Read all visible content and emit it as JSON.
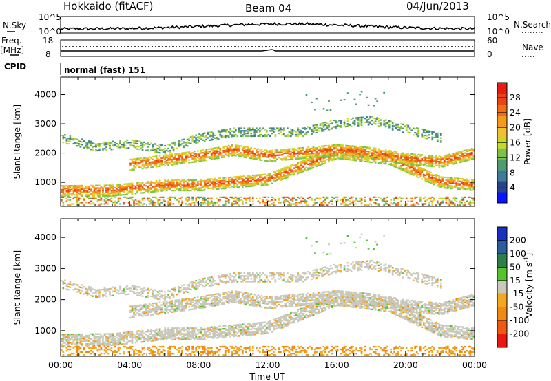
{
  "header": {
    "title": "Hokkaido (fitACF)",
    "beam": "Beam 04",
    "date": "04/Jun/2013"
  },
  "summary_panel": {
    "nsky_label": "N.Sky",
    "nsky_ticks": [
      "10^5",
      "10^0"
    ],
    "nsearch_label": "N.Search",
    "nsearch_ticks": [
      "10^5",
      "10^0"
    ],
    "freq_label": "Freq.",
    "freq_unit": "[MHz]",
    "freq_ticks": [
      "18",
      "8"
    ],
    "nave_label": "Nave",
    "nave_ticks": [
      "60",
      "0"
    ],
    "cpid_label": "CPID",
    "cpid_value": "normal (fast) 151"
  },
  "chart_data": [
    {
      "type": "heatmap",
      "name": "Power",
      "xlabel": "",
      "ylabel": "Slant Range [km]",
      "x_range_hours": [
        0,
        24
      ],
      "ylim": [
        180,
        4600
      ],
      "y_ticks": [
        1000,
        2000,
        3000,
        4000
      ],
      "colorbar": {
        "label": "Power [dB]",
        "range": [
          0,
          32
        ],
        "ticks": [
          4,
          8,
          12,
          16,
          20,
          24,
          28
        ],
        "colors": [
          "#0a14ff",
          "#27448f",
          "#3e7a9a",
          "#4f9a6e",
          "#7cc24a",
          "#c6d82e",
          "#f0c030",
          "#f49b1c",
          "#ef6f16",
          "#e84418",
          "#e61e12"
        ]
      },
      "layers_km_vs_hour": [
        {
          "desc_value": "strong",
          "power_db": 28,
          "center": [
            [
              0,
              700
            ],
            [
              3,
              720
            ],
            [
              6,
              900
            ],
            [
              8,
              900
            ],
            [
              10,
              1000
            ],
            [
              12,
              1100
            ],
            [
              16,
              2000
            ],
            [
              19,
              1800
            ],
            [
              22,
              1000
            ],
            [
              24,
              900
            ]
          ]
        },
        {
          "power_db": 26,
          "center": [
            [
              4,
              1600
            ],
            [
              8,
              1900
            ],
            [
              10,
              2100
            ],
            [
              12,
              1900
            ],
            [
              14,
              2000
            ],
            [
              16,
              2100
            ],
            [
              18,
              2000
            ],
            [
              20,
              1800
            ],
            [
              22,
              1700
            ],
            [
              24,
              2000
            ]
          ]
        },
        {
          "power_db": 14,
          "center": [
            [
              0,
              2500
            ],
            [
              2,
              2200
            ],
            [
              4,
              2300
            ],
            [
              6,
              2100
            ],
            [
              8,
              2500
            ],
            [
              10,
              2700
            ],
            [
              12,
              2700
            ],
            [
              14,
              2700
            ],
            [
              16,
              3000
            ],
            [
              18,
              3100
            ],
            [
              20,
              2800
            ],
            [
              22,
              2500
            ]
          ]
        }
      ]
    },
    {
      "type": "heatmap",
      "name": "Velocity",
      "xlabel": "Time UT",
      "ylabel": "Slant Range [km]",
      "x_range_hours": [
        0,
        24
      ],
      "ylim": [
        180,
        4600
      ],
      "y_ticks": [
        1000,
        2000,
        3000,
        4000
      ],
      "colorbar": {
        "label": "Velocity [m s",
        "label_sup": "-1",
        "label_end": "]",
        "ticks": [
          "200",
          "100",
          "50",
          "15",
          "-15",
          "-50",
          "-100",
          "-200"
        ],
        "colors": [
          "#1a2fbf",
          "#2b5d9c",
          "#2f7d4a",
          "#55c42c",
          "#c8c8bc",
          "#f2a820",
          "#f08a12",
          "#ee5a10",
          "#e81a10"
        ]
      }
    }
  ],
  "x_axis": {
    "ticks": [
      "00:00",
      "04:00",
      "08:00",
      "12:00",
      "16:00",
      "20:00",
      "00:00"
    ],
    "label": "Time UT"
  }
}
